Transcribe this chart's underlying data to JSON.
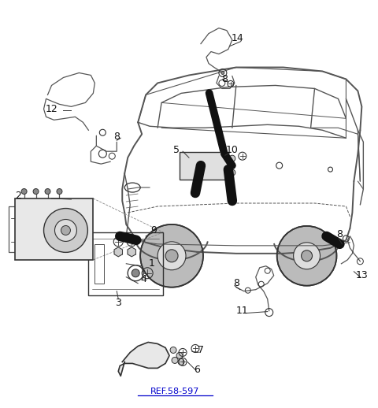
{
  "background_color": "#ffffff",
  "fig_width": 4.8,
  "fig_height": 5.18,
  "dpi": 100,
  "ref_text": "REF.58-597",
  "line_color": "#555555",
  "dark_color": "#333333",
  "black": "#111111"
}
